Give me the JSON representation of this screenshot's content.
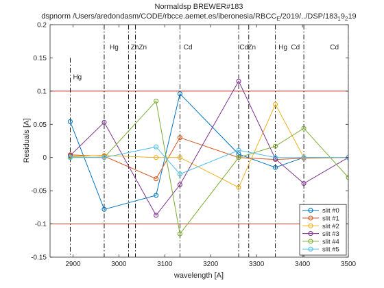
{
  "chart_data": {
    "type": "line",
    "title": "Normaldsp BREWER#183",
    "subtitle_parts": {
      "main": "dspnorm /Users/aredondasm/CODE/rbcce.aemet.es/iberonesia/RBCC",
      "sub_E": "E",
      "rest": "/2019/../DSP/183",
      "sub_1": "1",
      "nine": "9",
      "sub_2": "2",
      "tail": "19"
    },
    "xlabel": "wavelength [A]",
    "ylabel": "Residuals [A]",
    "xlim": [
      2850,
      3500
    ],
    "ylim": [
      -0.15,
      0.2
    ],
    "xticks": [
      2900,
      3000,
      3100,
      3200,
      3300,
      3400,
      3500
    ],
    "yticks": [
      -0.15,
      -0.1,
      -0.05,
      0,
      0.05,
      0.1,
      0.15,
      0.2
    ],
    "ytick_labels": [
      "-0.15",
      "-0.1",
      "-0.05",
      "0",
      "0.05",
      "0.1",
      "0.15",
      "0.2"
    ],
    "grid": false,
    "legend_position": "bottom-right",
    "limit_lines": [
      0.1,
      -0.1
    ],
    "limit_color": "#c0392b",
    "x": [
      2894,
      2968,
      3081,
      3133,
      3261,
      3341,
      3403,
      3500
    ],
    "series": [
      {
        "name": "slit #0",
        "color": "#0072BD",
        "values": [
          0.054,
          -0.078,
          -0.057,
          0.096,
          0.005,
          -0.015,
          0.0,
          0.0
        ]
      },
      {
        "name": "slit #1",
        "color": "#D95319",
        "values": [
          0.004,
          0.002,
          -0.032,
          0.03,
          0.0,
          -0.003,
          -0.001,
          0.0
        ]
      },
      {
        "name": "slit #2",
        "color": "#EDB120",
        "values": [
          0.002,
          0.003,
          0.0,
          0.0,
          -0.045,
          0.08,
          0.0,
          0.0
        ]
      },
      {
        "name": "slit #3",
        "color": "#7E2F8E",
        "values": [
          0.003,
          0.053,
          -0.087,
          -0.041,
          0.115,
          -0.002,
          -0.039,
          0.0
        ]
      },
      {
        "name": "slit #4",
        "color": "#77AC30",
        "values": [
          0.001,
          0.0,
          0.085,
          -0.115,
          0.0,
          0.017,
          0.044,
          -0.03
        ]
      },
      {
        "name": "slit #5",
        "color": "#4DBEEE",
        "values": [
          0.0,
          0.0,
          0.016,
          -0.025,
          0.011,
          0.0,
          0.0,
          0.0
        ]
      }
    ],
    "lamp_lines": [
      {
        "x": 2894,
        "dash": "dashdot",
        "y_top": 0.15
      },
      {
        "x": 2968,
        "dash": "dashdot",
        "y_top": 0.2
      },
      {
        "x": 3021,
        "dash": "dashdot",
        "y_top": 0.2
      },
      {
        "x": 3036,
        "dash": "dashdot",
        "y_top": 0.2
      },
      {
        "x": 3133,
        "dash": "dashdot",
        "y_top": 0.2
      },
      {
        "x": 3261,
        "dash": "dashdot",
        "y_top": 0.2
      },
      {
        "x": 3283,
        "dash": "dashdot",
        "y_top": 0.2
      },
      {
        "x": 3341,
        "dash": "dashdot",
        "y_top": 0.2
      },
      {
        "x": 3403,
        "dash": "dashdot",
        "y_top": 0.2
      },
      {
        "x": 3500,
        "dash": "dashdot",
        "y_top": 0.2
      }
    ],
    "annotations": [
      {
        "text": "Hg",
        "x": 2900,
        "y": 0.118
      },
      {
        "text": "Hg",
        "x": 2980,
        "y": 0.163
      },
      {
        "text": "ZnZn",
        "x": 3026,
        "y": 0.163
      },
      {
        "text": "Cd",
        "x": 3141,
        "y": 0.163
      },
      {
        "text": "Cd",
        "x": 3263,
        "y": 0.163
      },
      {
        "text": "Zn",
        "x": 3281,
        "y": 0.163
      },
      {
        "text": "Hg",
        "x": 3348,
        "y": 0.163
      },
      {
        "text": "Cd",
        "x": 3375,
        "y": 0.163
      },
      {
        "text": "Cd",
        "x": 3460,
        "y": 0.163
      }
    ]
  }
}
